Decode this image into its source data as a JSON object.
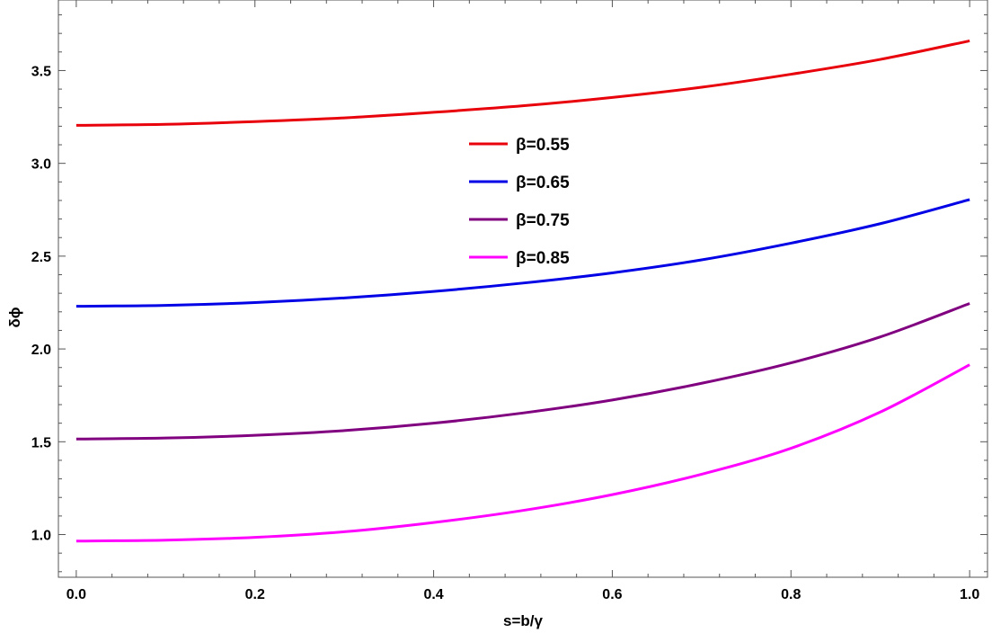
{
  "chart_data": {
    "type": "line",
    "title": "",
    "xlabel": "s=b/γ",
    "ylabel": "δϕ",
    "xlim": [
      -0.02,
      1.02
    ],
    "ylim": [
      0.77,
      3.88
    ],
    "xticks": [
      "0.0",
      "0.2",
      "0.4",
      "0.6",
      "0.8",
      "1.0"
    ],
    "yticks": [
      "1.0",
      "1.5",
      "2.0",
      "2.5",
      "3.0",
      "3.5"
    ],
    "grid": false,
    "legend_position": "center",
    "x": [
      0.0,
      0.1,
      0.2,
      0.3,
      0.4,
      0.5,
      0.6,
      0.7,
      0.8,
      0.9,
      1.0
    ],
    "series": [
      {
        "name": "β=0.55",
        "color": "#e8000b",
        "values": [
          3.205,
          3.21,
          3.225,
          3.245,
          3.275,
          3.31,
          3.355,
          3.41,
          3.48,
          3.56,
          3.66
        ]
      },
      {
        "name": "β=0.65",
        "color": "#0000e6",
        "values": [
          2.23,
          2.235,
          2.25,
          2.275,
          2.31,
          2.355,
          2.41,
          2.48,
          2.57,
          2.675,
          2.805
        ]
      },
      {
        "name": "β=0.75",
        "color": "#800080",
        "values": [
          1.515,
          1.52,
          1.535,
          1.56,
          1.6,
          1.655,
          1.725,
          1.815,
          1.925,
          2.065,
          2.245
        ]
      },
      {
        "name": "β=0.85",
        "color": "#ff00ff",
        "values": [
          0.965,
          0.97,
          0.985,
          1.015,
          1.065,
          1.13,
          1.215,
          1.325,
          1.465,
          1.66,
          1.915
        ]
      }
    ]
  }
}
